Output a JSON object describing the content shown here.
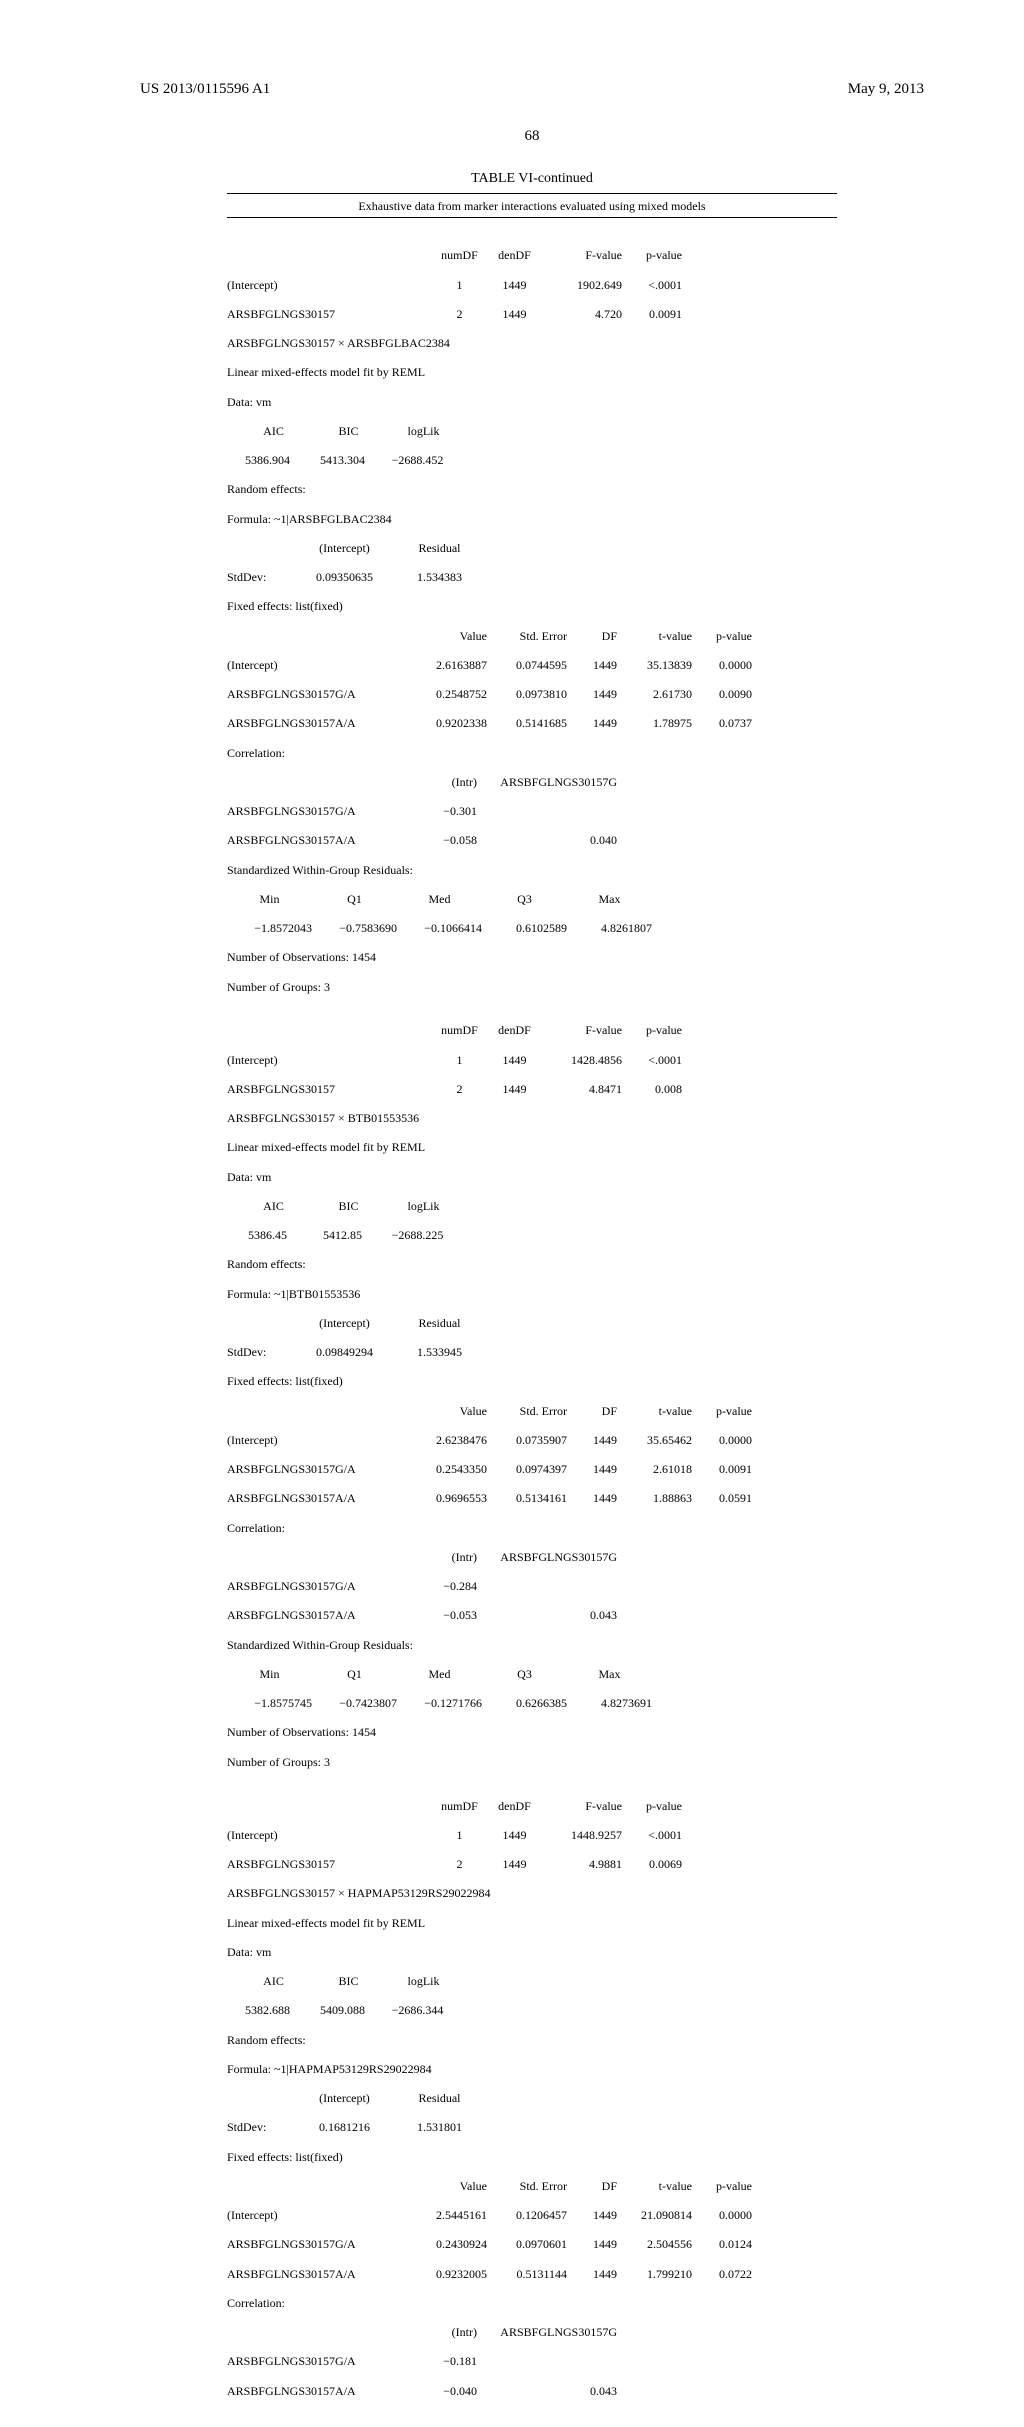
{
  "header": {
    "left": "US 2013/0115596 A1",
    "right": "May 9, 2013"
  },
  "page_number": "68",
  "table": {
    "title": "TABLE VI-continued",
    "caption": "Exhaustive data from marker interactions evaluated using mixed models"
  },
  "block1": {
    "f_header": [
      "numDF",
      "denDF",
      "F-value",
      "p-value"
    ],
    "intercept": {
      "label": "(Intercept)",
      "numDF": "1",
      "denDF": "1449",
      "F": "1902.649",
      "p": "<.0001"
    },
    "arsb": {
      "label": "ARSBFGLNGS30157",
      "numDF": "2",
      "denDF": "1449",
      "F": "4.720",
      "p": "0.0091"
    },
    "interaction": "ARSBFGLNGS30157 × ARSBFGLBAC2384",
    "model_fit": "Linear mixed-effects model fit by REML",
    "data": "Data: vm",
    "aic": {
      "AIC": "5386.904",
      "BIC": "5413.304",
      "logLik": "−2688.452"
    },
    "random": "Random effects:",
    "formula": "Formula: ~1|ARSBFGLBAC2384",
    "stddev": {
      "label": "StdDev:",
      "Intercept": "0.09350635",
      "Residual": "1.534383"
    },
    "fixed": "Fixed effects: list(fixed)",
    "fixed_header": [
      "Value",
      "Std. Error",
      "DF",
      "t-value",
      "p-value"
    ],
    "fixed_rows": [
      {
        "label": "(Intercept)",
        "Value": "2.6163887",
        "SE": "0.0744595",
        "DF": "1449",
        "t": "35.13839",
        "p": "0.0000"
      },
      {
        "label": "ARSBFGLNGS30157G/A",
        "Value": "0.2548752",
        "SE": "0.0973810",
        "DF": "1449",
        "t": "2.61730",
        "p": "0.0090"
      },
      {
        "label": "ARSBFGLNGS30157A/A",
        "Value": "0.9202338",
        "SE": "0.5141685",
        "DF": "1449",
        "t": "1.78975",
        "p": "0.0737"
      }
    ],
    "correlation": "Correlation:",
    "corr_header": [
      "(Intr)",
      "ARSBFGLNGS30157G"
    ],
    "corr_rows": [
      {
        "label": "ARSBFGLNGS30157G/A",
        "c1": "−0.301",
        "c2": ""
      },
      {
        "label": "ARSBFGLNGS30157A/A",
        "c1": "−0.058",
        "c2": "0.040"
      }
    ],
    "std_resid": "Standardized Within-Group Residuals:",
    "resid_header": [
      "Min",
      "Q1",
      "Med",
      "Q3",
      "Max"
    ],
    "resid_vals": [
      "−1.8572043",
      "−0.7583690",
      "−0.1066414",
      "0.6102589",
      "4.8261807"
    ],
    "n_obs": "Number of Observations: 1454",
    "n_grp": "Number of Groups: 3"
  },
  "block2": {
    "f_header": [
      "numDF",
      "denDF",
      "F-value",
      "p-value"
    ],
    "intercept": {
      "label": "(Intercept)",
      "numDF": "1",
      "denDF": "1449",
      "F": "1428.4856",
      "p": "<.0001"
    },
    "arsb": {
      "label": "ARSBFGLNGS30157",
      "numDF": "2",
      "denDF": "1449",
      "F": "4.8471",
      "p": "0.008"
    },
    "interaction": "ARSBFGLNGS30157 × BTB01553536",
    "model_fit": "Linear mixed-effects model fit by REML",
    "data": "Data: vm",
    "aic": {
      "AIC": "5386.45",
      "BIC": "5412.85",
      "logLik": "−2688.225"
    },
    "random": "Random effects:",
    "formula": "Formula: ~1|BTB01553536",
    "stddev": {
      "label": "StdDev:",
      "Intercept": "0.09849294",
      "Residual": "1.533945"
    },
    "fixed": "Fixed effects: list(fixed)",
    "fixed_rows": [
      {
        "label": "(Intercept)",
        "Value": "2.6238476",
        "SE": "0.0735907",
        "DF": "1449",
        "t": "35.65462",
        "p": "0.0000"
      },
      {
        "label": "ARSBFGLNGS30157G/A",
        "Value": "0.2543350",
        "SE": "0.0974397",
        "DF": "1449",
        "t": "2.61018",
        "p": "0.0091"
      },
      {
        "label": "ARSBFGLNGS30157A/A",
        "Value": "0.9696553",
        "SE": "0.5134161",
        "DF": "1449",
        "t": "1.88863",
        "p": "0.0591"
      }
    ],
    "correlation": "Correlation:",
    "corr_rows": [
      {
        "label": "ARSBFGLNGS30157G/A",
        "c1": "−0.284",
        "c2": ""
      },
      {
        "label": "ARSBFGLNGS30157A/A",
        "c1": "−0.053",
        "c2": "0.043"
      }
    ],
    "std_resid": "Standardized Within-Group Residuals:",
    "resid_vals": [
      "−1.8575745",
      "−0.7423807",
      "−0.1271766",
      "0.6266385",
      "4.8273691"
    ],
    "n_obs": "Number of Observations: 1454",
    "n_grp": "Number of Groups: 3"
  },
  "block3": {
    "f_header": [
      "numDF",
      "denDF",
      "F-value",
      "p-value"
    ],
    "intercept": {
      "label": "(Intercept)",
      "numDF": "1",
      "denDF": "1449",
      "F": "1448.9257",
      "p": "<.0001"
    },
    "arsb": {
      "label": "ARSBFGLNGS30157",
      "numDF": "2",
      "denDF": "1449",
      "F": "4.9881",
      "p": "0.0069"
    },
    "interaction": "ARSBFGLNGS30157 × HAPMAP53129RS29022984",
    "model_fit": "Linear mixed-effects model fit by REML",
    "data": "Data: vm",
    "aic": {
      "AIC": "5382.688",
      "BIC": "5409.088",
      "logLik": "−2686.344"
    },
    "random": "Random effects:",
    "formula": "Formula: ~1|HAPMAP53129RS29022984",
    "stddev": {
      "label": "StdDev:",
      "Intercept": "0.1681216",
      "Residual": "1.531801"
    },
    "fixed": "Fixed effects: list(fixed)",
    "fixed_rows": [
      {
        "label": "(Intercept)",
        "Value": "2.5445161",
        "SE": "0.1206457",
        "DF": "1449",
        "t": "21.090814",
        "p": "0.0000"
      },
      {
        "label": "ARSBFGLNGS30157G/A",
        "Value": "0.2430924",
        "SE": "0.0970601",
        "DF": "1449",
        "t": "2.504556",
        "p": "0.0124"
      },
      {
        "label": "ARSBFGLNGS30157A/A",
        "Value": "0.9232005",
        "SE": "0.5131144",
        "DF": "1449",
        "t": "1.799210",
        "p": "0.0722"
      }
    ],
    "correlation": "Correlation:",
    "corr_rows": [
      {
        "label": "ARSBFGLNGS30157G/A",
        "c1": "−0.181",
        "c2": ""
      },
      {
        "label": "ARSBFGLNGS30157A/A",
        "c1": "−0.040",
        "c2": "0.043"
      }
    ]
  },
  "labels": {
    "aic_h": [
      "AIC",
      "BIC",
      "logLik"
    ],
    "stddev_h": [
      "(Intercept)",
      "Residual"
    ],
    "corr_h": [
      "(Intr)",
      "ARSBFGLNGS30157G"
    ],
    "fixed_h": [
      "Value",
      "Std. Error",
      "DF",
      "t-value",
      "p-value"
    ],
    "resid_h": [
      "Min",
      "Q1",
      "Med",
      "Q3",
      "Max"
    ]
  }
}
